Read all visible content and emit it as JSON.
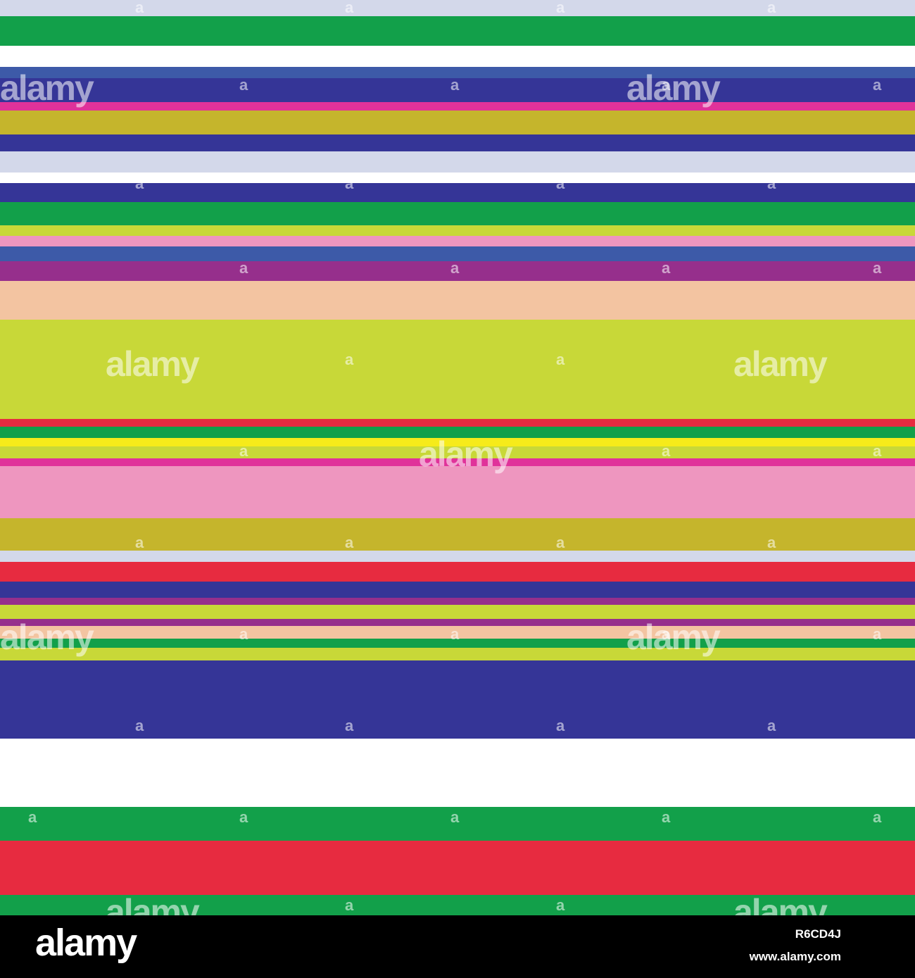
{
  "pattern": {
    "stripes": [
      {
        "color": "#d3d8ea"
      },
      {
        "color": "#12a04a"
      },
      {
        "color": "#ffffff"
      },
      {
        "color": "#3d5aa8"
      },
      {
        "color": "#353597"
      },
      {
        "color": "#e0329a"
      },
      {
        "color": "#c5b52c"
      },
      {
        "color": "#353597"
      },
      {
        "color": "#d3d8ea"
      },
      {
        "color": "#ffffff"
      },
      {
        "color": "#353597"
      },
      {
        "color": "#12a04a"
      },
      {
        "color": "#c8d838"
      },
      {
        "color": "#ee96bf"
      },
      {
        "color": "#3d5aa8"
      },
      {
        "color": "#962f8c"
      },
      {
        "color": "#f3c4a1"
      },
      {
        "color": "#c8d838"
      },
      {
        "color": "#e72b40"
      },
      {
        "color": "#12a04a"
      },
      {
        "color": "#f6eb1a"
      },
      {
        "color": "#c8d838"
      },
      {
        "color": "#e0329a"
      },
      {
        "color": "#ee96bf"
      },
      {
        "color": "#c5b52c"
      },
      {
        "color": "#d3d8ea"
      },
      {
        "color": "#e72b40"
      },
      {
        "color": "#353597"
      },
      {
        "color": "#962f8c"
      },
      {
        "color": "#c8d838"
      },
      {
        "color": "#962f8c"
      },
      {
        "color": "#f3c4a1"
      },
      {
        "color": "#12a04a"
      },
      {
        "color": "#c8d838"
      },
      {
        "color": "#353597"
      },
      {
        "color": "#ffffff"
      },
      {
        "color": "#12a04a"
      },
      {
        "color": "#e72b40"
      },
      {
        "color": "#12a04a"
      }
    ]
  },
  "watermark": {
    "brand": "alamy",
    "mark": "a"
  },
  "footer": {
    "logo": "alamy",
    "image_id": "R6CD4J",
    "url": "www.alamy.com"
  }
}
